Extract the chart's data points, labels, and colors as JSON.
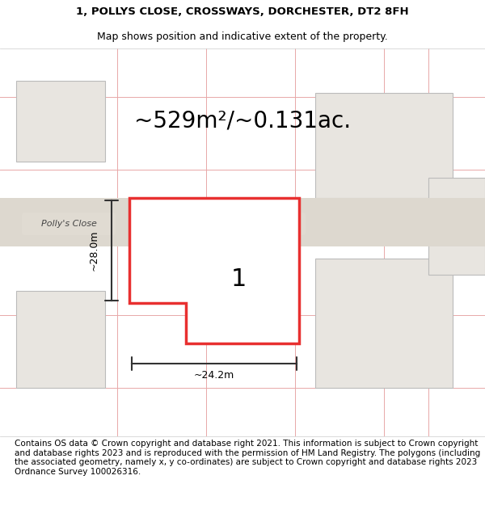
{
  "title_line1": "1, POLLYS CLOSE, CROSSWAYS, DORCHESTER, DT2 8FH",
  "title_line2": "Map shows position and indicative extent of the property.",
  "area_text": "~529m²/~0.131ac.",
  "footer_text": "Contains OS data © Crown copyright and database right 2021. This information is subject to Crown copyright and database rights 2023 and is reproduced with the permission of HM Land Registry. The polygons (including the associated geometry, namely x, y co-ordinates) are subject to Crown copyright and database rights 2023 Ordnance Survey 100026316.",
  "background_color": "#f0ede8",
  "map_bg": "#f5f3ef",
  "plot_fill": "#f5f3ef",
  "plot_edge": "#e83030",
  "neighbor_fill": "#e8e5e0",
  "neighbor_edge": "#cccccc",
  "road_fill": "#ddd8cf",
  "road_label_bg": "#e0dbd2",
  "grid_color": "#e8a8a8",
  "dim_line_color": "#333333",
  "label_color": "#555555",
  "street_label": "Polly's Close",
  "street_label2": "Polly's Close",
  "dim_width": "~24.2m",
  "dim_height": "~28.0m",
  "plot_number": "1",
  "title_fontsize": 9.5,
  "area_fontsize": 20,
  "footer_fontsize": 7.5
}
